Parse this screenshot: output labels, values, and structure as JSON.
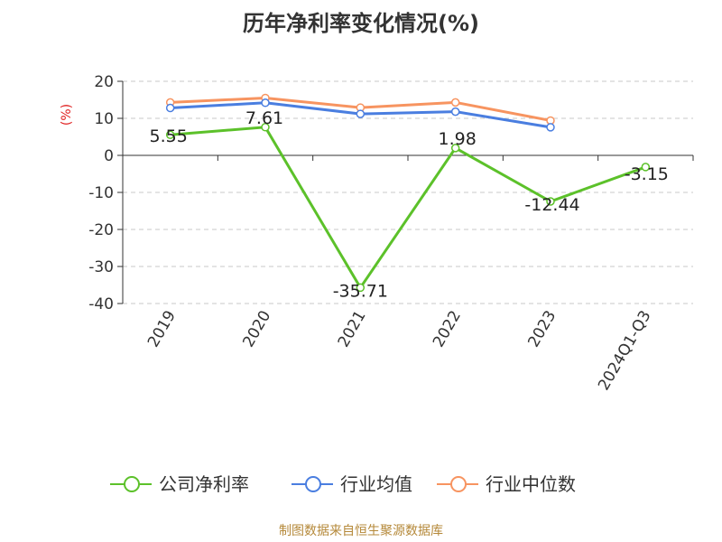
{
  "chart_data": {
    "type": "line",
    "title": "历年净利率变化情况(%)",
    "ylabel": "(%)",
    "xlabel": "",
    "categories": [
      "2019",
      "2020",
      "2021",
      "2022",
      "2023",
      "2024Q1-Q3"
    ],
    "ylim": [
      -40,
      20
    ],
    "yticks": [
      20,
      10,
      0,
      -10,
      -20,
      -30,
      -40
    ],
    "grid": true,
    "legend_position": "bottom",
    "series": [
      {
        "name": "公司净利率",
        "color": "#5cc12a",
        "values": [
          5.55,
          7.61,
          -35.71,
          1.98,
          -12.44,
          -3.15
        ],
        "labels": [
          "5.55",
          "7.61",
          "-35.71",
          "1.98",
          "-12.44",
          "-3.15"
        ]
      },
      {
        "name": "行业均值",
        "color": "#4a7ee0",
        "values": [
          12.8,
          14.2,
          11.2,
          11.8,
          7.6,
          null
        ]
      },
      {
        "name": "行业中位数",
        "color": "#f79460",
        "values": [
          14.3,
          15.5,
          12.9,
          14.3,
          9.4,
          null
        ]
      }
    ]
  },
  "footer": {
    "source": "制图数据来自恒生聚源数据库"
  }
}
